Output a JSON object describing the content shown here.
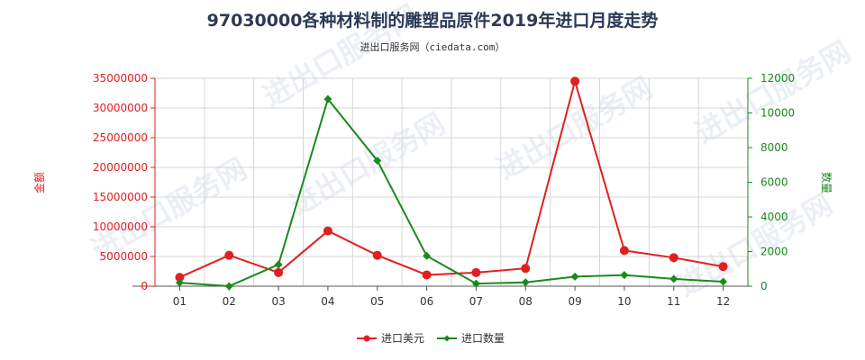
{
  "chart_data": {
    "type": "line",
    "title": "97030000各种材料制的雕塑品原件2019年进口月度走势",
    "subtitle": "进出口服务网（ciedata.com）",
    "categories": [
      "01",
      "02",
      "03",
      "04",
      "05",
      "06",
      "07",
      "08",
      "09",
      "10",
      "11",
      "12"
    ],
    "series": [
      {
        "name": "进口美元",
        "axis": "left",
        "color": "#e02020",
        "values": [
          1500000,
          5200000,
          2300000,
          9300000,
          5200000,
          1900000,
          2300000,
          3000000,
          34500000,
          6000000,
          4800000,
          3300000
        ]
      },
      {
        "name": "进口数量",
        "axis": "right",
        "color": "#1a8a1a",
        "values": [
          200,
          0,
          1250,
          10800,
          7250,
          1750,
          150,
          220,
          550,
          640,
          420,
          260
        ]
      }
    ],
    "y_left": {
      "label": "金额",
      "ylim": [
        0,
        35000000
      ],
      "ticks": [
        "0",
        "5000000",
        "10000000",
        "15000000",
        "20000000",
        "25000000",
        "30000000",
        "35000000"
      ],
      "color": "#e02020"
    },
    "y_right": {
      "label": "数量",
      "ylim": [
        0,
        12000
      ],
      "ticks": [
        "0",
        "2000",
        "4000",
        "6000",
        "8000",
        "10000",
        "12000"
      ],
      "color": "#1a8a1a"
    },
    "grid": true,
    "legend": "bottom-center",
    "watermark": "进出口服务网"
  }
}
